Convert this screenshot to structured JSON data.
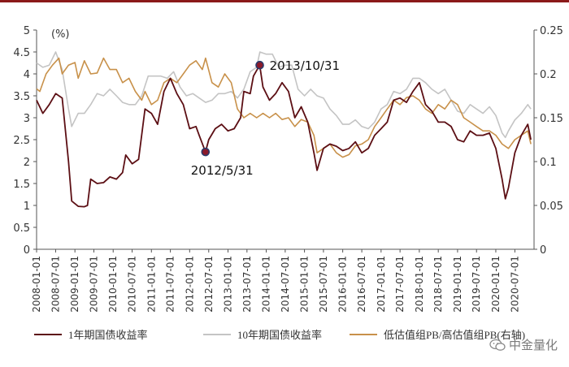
{
  "chart_data": {
    "type": "line",
    "left_axis": {
      "unit": "(%)",
      "ylim": [
        0,
        5
      ],
      "ticks": [
        "0",
        "0.5",
        "1",
        "1.5",
        "2",
        "2.5",
        "3",
        "3.5",
        "4",
        "4.5",
        "5"
      ]
    },
    "right_axis": {
      "ylim": [
        0,
        0.25
      ],
      "ticks": [
        "0",
        "0.05",
        "0.1",
        "0.15",
        "0.2",
        "0.25"
      ]
    },
    "x_ticks": [
      "2008-01-01",
      "2008-07-01",
      "2009-01-01",
      "2009-07-01",
      "2010-01-01",
      "2010-07-01",
      "2011-01-01",
      "2011-07-01",
      "2012-01-01",
      "2012-07-01",
      "2013-01-01",
      "2013-07-01",
      "2014-01-01",
      "2014-07-01",
      "2015-01-01",
      "2015-07-01",
      "2016-01-01",
      "2016-07-01",
      "2017-01-01",
      "2017-07-01",
      "2018-01-01",
      "2018-07-01",
      "2019-01-01",
      "2019-07-01",
      "2020-01-01",
      "2020-07-01"
    ],
    "grid": false,
    "legend_position": "bottom",
    "series": [
      {
        "name": "1年期国债收益率",
        "axis": "left",
        "color": "#5c0f14",
        "points": [
          [
            "2008-01-01",
            3.4
          ],
          [
            "2008-03-01",
            3.1
          ],
          [
            "2008-05-01",
            3.3
          ],
          [
            "2008-07-01",
            3.55
          ],
          [
            "2008-09-01",
            3.45
          ],
          [
            "2008-11-01",
            2.0
          ],
          [
            "2008-12-01",
            1.1
          ],
          [
            "2009-02-01",
            0.98
          ],
          [
            "2009-04-01",
            0.97
          ],
          [
            "2009-05-01",
            1.0
          ],
          [
            "2009-06-01",
            1.6
          ],
          [
            "2009-08-01",
            1.5
          ],
          [
            "2009-10-01",
            1.52
          ],
          [
            "2009-12-01",
            1.65
          ],
          [
            "2010-02-01",
            1.6
          ],
          [
            "2010-04-01",
            1.75
          ],
          [
            "2010-05-01",
            2.15
          ],
          [
            "2010-07-01",
            1.95
          ],
          [
            "2010-09-01",
            2.05
          ],
          [
            "2010-11-01",
            3.2
          ],
          [
            "2011-01-01",
            3.1
          ],
          [
            "2011-03-01",
            2.85
          ],
          [
            "2011-05-01",
            3.6
          ],
          [
            "2011-07-01",
            3.9
          ],
          [
            "2011-09-01",
            3.55
          ],
          [
            "2011-11-01",
            3.3
          ],
          [
            "2012-01-01",
            2.75
          ],
          [
            "2012-03-01",
            2.8
          ],
          [
            "2012-04-01",
            2.6
          ],
          [
            "2012-05-31",
            2.22
          ],
          [
            "2012-07-01",
            2.5
          ],
          [
            "2012-09-01",
            2.75
          ],
          [
            "2012-11-01",
            2.85
          ],
          [
            "2013-01-01",
            2.7
          ],
          [
            "2013-03-01",
            2.75
          ],
          [
            "2013-05-01",
            3.0
          ],
          [
            "2013-06-01",
            3.6
          ],
          [
            "2013-08-01",
            3.55
          ],
          [
            "2013-09-01",
            3.95
          ],
          [
            "2013-10-31",
            4.2
          ],
          [
            "2013-12-01",
            3.7
          ],
          [
            "2014-02-01",
            3.4
          ],
          [
            "2014-04-01",
            3.55
          ],
          [
            "2014-06-01",
            3.8
          ],
          [
            "2014-08-01",
            3.6
          ],
          [
            "2014-10-01",
            3.0
          ],
          [
            "2014-12-01",
            3.25
          ],
          [
            "2015-02-01",
            2.9
          ],
          [
            "2015-04-01",
            2.2
          ],
          [
            "2015-05-01",
            1.8
          ],
          [
            "2015-07-01",
            2.3
          ],
          [
            "2015-09-01",
            2.4
          ],
          [
            "2015-11-01",
            2.35
          ],
          [
            "2016-01-01",
            2.25
          ],
          [
            "2016-03-01",
            2.3
          ],
          [
            "2016-05-01",
            2.45
          ],
          [
            "2016-07-01",
            2.2
          ],
          [
            "2016-09-01",
            2.3
          ],
          [
            "2016-11-01",
            2.6
          ],
          [
            "2017-01-01",
            2.75
          ],
          [
            "2017-03-01",
            2.9
          ],
          [
            "2017-05-01",
            3.4
          ],
          [
            "2017-07-01",
            3.45
          ],
          [
            "2017-09-01",
            3.35
          ],
          [
            "2017-11-01",
            3.6
          ],
          [
            "2018-01-01",
            3.8
          ],
          [
            "2018-03-01",
            3.3
          ],
          [
            "2018-05-01",
            3.15
          ],
          [
            "2018-07-01",
            2.9
          ],
          [
            "2018-09-01",
            2.9
          ],
          [
            "2018-11-01",
            2.8
          ],
          [
            "2019-01-01",
            2.5
          ],
          [
            "2019-03-01",
            2.45
          ],
          [
            "2019-05-01",
            2.7
          ],
          [
            "2019-07-01",
            2.6
          ],
          [
            "2019-09-01",
            2.6
          ],
          [
            "2019-11-01",
            2.65
          ],
          [
            "2020-01-01",
            2.3
          ],
          [
            "2020-03-01",
            1.6
          ],
          [
            "2020-04-01",
            1.15
          ],
          [
            "2020-05-01",
            1.4
          ],
          [
            "2020-07-01",
            2.2
          ],
          [
            "2020-09-01",
            2.6
          ],
          [
            "2020-11-01",
            2.85
          ],
          [
            "2020-12-01",
            2.5
          ]
        ]
      },
      {
        "name": "10年期国债收益率",
        "axis": "left",
        "color": "#c4c4c4",
        "points": [
          [
            "2008-01-01",
            4.25
          ],
          [
            "2008-03-01",
            4.15
          ],
          [
            "2008-05-01",
            4.2
          ],
          [
            "2008-07-01",
            4.5
          ],
          [
            "2008-09-01",
            4.1
          ],
          [
            "2008-11-01",
            3.2
          ],
          [
            "2008-12-01",
            2.8
          ],
          [
            "2009-02-01",
            3.1
          ],
          [
            "2009-04-01",
            3.1
          ],
          [
            "2009-06-01",
            3.3
          ],
          [
            "2009-08-01",
            3.55
          ],
          [
            "2009-10-01",
            3.5
          ],
          [
            "2009-12-01",
            3.65
          ],
          [
            "2010-02-01",
            3.5
          ],
          [
            "2010-04-01",
            3.35
          ],
          [
            "2010-06-01",
            3.3
          ],
          [
            "2010-08-01",
            3.3
          ],
          [
            "2010-10-01",
            3.5
          ],
          [
            "2010-12-01",
            3.95
          ],
          [
            "2011-02-01",
            3.95
          ],
          [
            "2011-04-01",
            3.95
          ],
          [
            "2011-06-01",
            3.9
          ],
          [
            "2011-08-01",
            4.05
          ],
          [
            "2011-10-01",
            3.7
          ],
          [
            "2011-12-01",
            3.5
          ],
          [
            "2012-02-01",
            3.55
          ],
          [
            "2012-04-01",
            3.45
          ],
          [
            "2012-06-01",
            3.35
          ],
          [
            "2012-08-01",
            3.4
          ],
          [
            "2012-10-01",
            3.55
          ],
          [
            "2012-12-01",
            3.55
          ],
          [
            "2013-02-01",
            3.6
          ],
          [
            "2013-04-01",
            3.45
          ],
          [
            "2013-06-01",
            3.65
          ],
          [
            "2013-08-01",
            4.05
          ],
          [
            "2013-10-01",
            4.15
          ],
          [
            "2013-11-01",
            4.5
          ],
          [
            "2014-01-01",
            4.45
          ],
          [
            "2014-03-01",
            4.45
          ],
          [
            "2014-05-01",
            4.15
          ],
          [
            "2014-07-01",
            4.2
          ],
          [
            "2014-09-01",
            4.2
          ],
          [
            "2014-11-01",
            3.65
          ],
          [
            "2015-01-01",
            3.5
          ],
          [
            "2015-03-01",
            3.65
          ],
          [
            "2015-05-01",
            3.5
          ],
          [
            "2015-07-01",
            3.45
          ],
          [
            "2015-09-01",
            3.2
          ],
          [
            "2015-11-01",
            3.05
          ],
          [
            "2016-01-01",
            2.85
          ],
          [
            "2016-03-01",
            2.85
          ],
          [
            "2016-05-01",
            2.95
          ],
          [
            "2016-07-01",
            2.8
          ],
          [
            "2016-09-01",
            2.75
          ],
          [
            "2016-11-01",
            2.9
          ],
          [
            "2017-01-01",
            3.2
          ],
          [
            "2017-03-01",
            3.3
          ],
          [
            "2017-05-01",
            3.6
          ],
          [
            "2017-07-01",
            3.55
          ],
          [
            "2017-09-01",
            3.65
          ],
          [
            "2017-11-01",
            3.9
          ],
          [
            "2018-01-01",
            3.9
          ],
          [
            "2018-03-01",
            3.8
          ],
          [
            "2018-05-01",
            3.65
          ],
          [
            "2018-07-01",
            3.55
          ],
          [
            "2018-09-01",
            3.65
          ],
          [
            "2018-11-01",
            3.4
          ],
          [
            "2019-01-01",
            3.15
          ],
          [
            "2019-03-01",
            3.1
          ],
          [
            "2019-05-01",
            3.3
          ],
          [
            "2019-07-01",
            3.2
          ],
          [
            "2019-09-01",
            3.1
          ],
          [
            "2019-11-01",
            3.25
          ],
          [
            "2020-01-01",
            3.05
          ],
          [
            "2020-03-01",
            2.65
          ],
          [
            "2020-04-01",
            2.55
          ],
          [
            "2020-05-01",
            2.7
          ],
          [
            "2020-07-01",
            2.95
          ],
          [
            "2020-09-01",
            3.1
          ],
          [
            "2020-11-01",
            3.3
          ],
          [
            "2020-12-01",
            3.2
          ]
        ]
      },
      {
        "name": "低估值组PB/高估值组PB(右轴)",
        "axis": "right",
        "color": "#c8914a",
        "points": [
          [
            "2008-01-01",
            0.183
          ],
          [
            "2008-02-01",
            0.18
          ],
          [
            "2008-04-01",
            0.2
          ],
          [
            "2008-06-01",
            0.21
          ],
          [
            "2008-08-01",
            0.218
          ],
          [
            "2008-09-01",
            0.2
          ],
          [
            "2008-11-01",
            0.21
          ],
          [
            "2009-01-01",
            0.213
          ],
          [
            "2009-02-01",
            0.195
          ],
          [
            "2009-04-01",
            0.215
          ],
          [
            "2009-06-01",
            0.2
          ],
          [
            "2009-08-01",
            0.201
          ],
          [
            "2009-10-01",
            0.218
          ],
          [
            "2009-12-01",
            0.205
          ],
          [
            "2010-02-01",
            0.205
          ],
          [
            "2010-04-01",
            0.19
          ],
          [
            "2010-06-01",
            0.195
          ],
          [
            "2010-08-01",
            0.18
          ],
          [
            "2010-10-01",
            0.17
          ],
          [
            "2010-11-01",
            0.18
          ],
          [
            "2011-01-01",
            0.165
          ],
          [
            "2011-03-01",
            0.17
          ],
          [
            "2011-05-01",
            0.19
          ],
          [
            "2011-07-01",
            0.195
          ],
          [
            "2011-09-01",
            0.19
          ],
          [
            "2011-11-01",
            0.2
          ],
          [
            "2012-01-01",
            0.21
          ],
          [
            "2012-03-01",
            0.215
          ],
          [
            "2012-05-01",
            0.205
          ],
          [
            "2012-06-01",
            0.218
          ],
          [
            "2012-08-01",
            0.19
          ],
          [
            "2012-10-01",
            0.185
          ],
          [
            "2012-12-01",
            0.2
          ],
          [
            "2013-02-01",
            0.19
          ],
          [
            "2013-04-01",
            0.16
          ],
          [
            "2013-06-01",
            0.15
          ],
          [
            "2013-08-01",
            0.155
          ],
          [
            "2013-10-01",
            0.15
          ],
          [
            "2013-12-01",
            0.155
          ],
          [
            "2014-02-01",
            0.15
          ],
          [
            "2014-04-01",
            0.155
          ],
          [
            "2014-06-01",
            0.148
          ],
          [
            "2014-08-01",
            0.15
          ],
          [
            "2014-10-01",
            0.14
          ],
          [
            "2014-12-01",
            0.148
          ],
          [
            "2015-02-01",
            0.145
          ],
          [
            "2015-04-01",
            0.13
          ],
          [
            "2015-05-01",
            0.11
          ],
          [
            "2015-07-01",
            0.115
          ],
          [
            "2015-09-01",
            0.12
          ],
          [
            "2015-11-01",
            0.11
          ],
          [
            "2016-01-01",
            0.105
          ],
          [
            "2016-03-01",
            0.108
          ],
          [
            "2016-05-01",
            0.118
          ],
          [
            "2016-07-01",
            0.12
          ],
          [
            "2016-09-01",
            0.125
          ],
          [
            "2016-11-01",
            0.14
          ],
          [
            "2017-01-01",
            0.15
          ],
          [
            "2017-03-01",
            0.16
          ],
          [
            "2017-05-01",
            0.17
          ],
          [
            "2017-07-01",
            0.165
          ],
          [
            "2017-09-01",
            0.173
          ],
          [
            "2017-11-01",
            0.175
          ],
          [
            "2018-01-01",
            0.17
          ],
          [
            "2018-03-01",
            0.16
          ],
          [
            "2018-05-01",
            0.155
          ],
          [
            "2018-07-01",
            0.165
          ],
          [
            "2018-09-01",
            0.16
          ],
          [
            "2018-11-01",
            0.17
          ],
          [
            "2019-01-01",
            0.165
          ],
          [
            "2019-03-01",
            0.15
          ],
          [
            "2019-05-01",
            0.145
          ],
          [
            "2019-07-01",
            0.14
          ],
          [
            "2019-09-01",
            0.135
          ],
          [
            "2019-11-01",
            0.135
          ],
          [
            "2020-01-01",
            0.13
          ],
          [
            "2020-03-01",
            0.12
          ],
          [
            "2020-05-01",
            0.115
          ],
          [
            "2020-07-01",
            0.125
          ],
          [
            "2020-09-01",
            0.13
          ],
          [
            "2020-11-01",
            0.135
          ],
          [
            "2020-12-01",
            0.12
          ]
        ]
      }
    ],
    "annotations": [
      {
        "label": "2012/5/31",
        "x": "2012-05-31",
        "y": 2.22
      },
      {
        "label": "2013/10/31",
        "x": "2013-10-31",
        "y": 4.2
      }
    ]
  },
  "watermark": {
    "text": "中金量化"
  }
}
